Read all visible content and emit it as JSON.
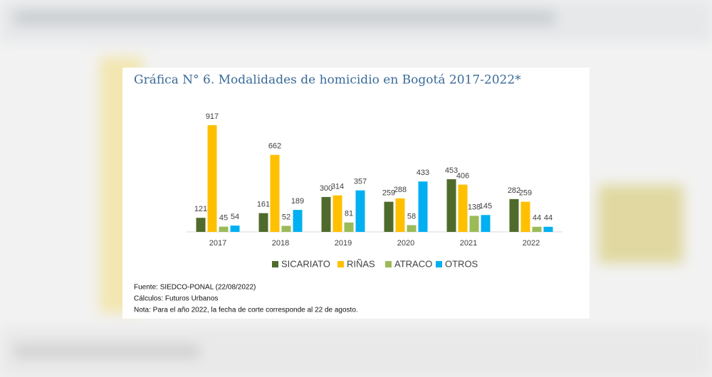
{
  "chart_data": {
    "type": "bar",
    "title": "Gráfica N° 6. Modalidades de homicidio en Bogotá 2017-2022*",
    "categories": [
      "2017",
      "2018",
      "2019",
      "2020",
      "2021",
      "2022"
    ],
    "series": [
      {
        "name": "SICARIATO",
        "color": "#4f6b2c",
        "values": [
          121,
          161,
          300,
          259,
          453,
          282
        ]
      },
      {
        "name": "RIÑAS",
        "color": "#ffc000",
        "values": [
          917,
          662,
          314,
          288,
          406,
          259
        ]
      },
      {
        "name": "ATRACO",
        "color": "#9bbb59",
        "values": [
          45,
          52,
          81,
          58,
          138,
          44
        ]
      },
      {
        "name": "OTROS",
        "color": "#00b0f0",
        "values": [
          54,
          189,
          357,
          433,
          145,
          44
        ]
      }
    ],
    "notes": [
      "Fuente: SIEDCO-PONAL (22/08/2022)",
      "Cálculos: Futuros Urbanos",
      "Nota: Para el año 2022, la fecha de corte corresponde al 22 de agosto."
    ]
  }
}
